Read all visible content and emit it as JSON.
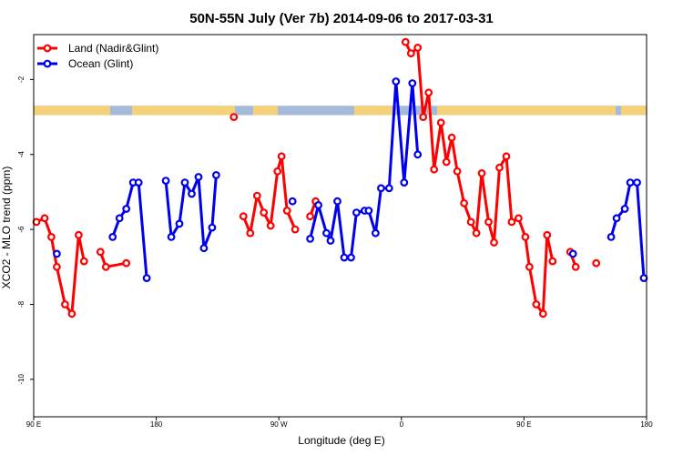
{
  "chart_data": {
    "type": "line",
    "title": "50N-55N July (Ver 7b)   2014-09-06 to 2017-03-31",
    "xlabel": "Longitude (deg E)",
    "ylabel": "XCO2 - MLO trend (ppm)",
    "xlim": [
      90,
      540
    ],
    "ylim": [
      -11,
      -0.8
    ],
    "x_ticks": [
      {
        "value": 90,
        "label": "90 E"
      },
      {
        "value": 180,
        "label": "180"
      },
      {
        "value": 270,
        "label": "90 W"
      },
      {
        "value": 360,
        "label": "0"
      },
      {
        "value": 450,
        "label": "90 E"
      },
      {
        "value": 540,
        "label": "180"
      }
    ],
    "y_ticks": [
      {
        "value": -2,
        "label": "-2"
      },
      {
        "value": -4,
        "label": "-4"
      },
      {
        "value": -6,
        "label": "-6"
      },
      {
        "value": -8,
        "label": "-8"
      },
      {
        "value": -10,
        "label": "-10"
      }
    ],
    "legend": {
      "position": "top-left"
    },
    "band": {
      "y_top": -2.7,
      "y_bottom": -2.95,
      "land_color": "#f5d27a",
      "ocean_color": "#a4bad8"
    },
    "series": [
      {
        "name": "Land (Nadir&Glint)",
        "color": "#ff0000",
        "segments": [
          [
            [
              92,
              -5.8
            ],
            [
              98,
              -5.7
            ],
            [
              103,
              -6.2
            ],
            [
              107,
              -7.0
            ],
            [
              113,
              -8.0
            ],
            [
              118,
              -8.25
            ],
            [
              123,
              -6.15
            ],
            [
              127,
              -6.85
            ]
          ],
          [
            [
              139,
              -6.6
            ],
            [
              143,
              -7.0
            ],
            [
              158,
              -6.9
            ]
          ],
          [
            [
              237,
              -3.0
            ]
          ],
          [
            [
              244,
              -5.65
            ],
            [
              249,
              -6.1
            ],
            [
              254,
              -5.1
            ],
            [
              259,
              -5.55
            ],
            [
              264,
              -5.9
            ],
            [
              269,
              -4.45
            ],
            [
              272,
              -4.05
            ],
            [
              276,
              -5.5
            ],
            [
              282,
              -6.0
            ]
          ],
          [
            [
              293,
              -5.65
            ],
            [
              297,
              -5.25
            ]
          ],
          [
            [
              363,
              -1.0
            ],
            [
              367,
              -1.3
            ],
            [
              372,
              -1.15
            ],
            [
              376,
              -3.0
            ],
            [
              380,
              -2.35
            ],
            [
              384,
              -4.4
            ],
            [
              389,
              -3.15
            ],
            [
              393,
              -4.2
            ],
            [
              397,
              -3.55
            ],
            [
              401,
              -4.45
            ],
            [
              406,
              -5.3
            ],
            [
              411,
              -5.8
            ],
            [
              415,
              -6.1
            ],
            [
              419,
              -4.5
            ],
            [
              424,
              -5.8
            ],
            [
              428,
              -6.35
            ],
            [
              432,
              -4.35
            ],
            [
              437,
              -4.05
            ],
            [
              441,
              -5.8
            ],
            [
              446,
              -5.7
            ],
            [
              451,
              -6.2
            ],
            [
              454,
              -7.0
            ],
            [
              459,
              -8.0
            ],
            [
              464,
              -8.25
            ],
            [
              467,
              -6.15
            ],
            [
              471,
              -6.85
            ]
          ],
          [
            [
              484,
              -6.6
            ],
            [
              488,
              -7.0
            ]
          ],
          [
            [
              503,
              -6.9
            ]
          ]
        ]
      },
      {
        "name": "Ocean (Glint)",
        "color": "#0000ee",
        "segments": [
          [
            [
              107,
              -6.65
            ]
          ],
          [
            [
              148,
              -6.2
            ],
            [
              153,
              -5.7
            ],
            [
              158,
              -5.45
            ],
            [
              163,
              -4.75
            ],
            [
              167,
              -4.75
            ],
            [
              173,
              -7.3
            ]
          ],
          [
            [
              187,
              -4.7
            ],
            [
              191,
              -6.2
            ],
            [
              197,
              -5.85
            ],
            [
              201,
              -4.75
            ],
            [
              206,
              -5.05
            ],
            [
              211,
              -4.6
            ],
            [
              215,
              -6.5
            ],
            [
              221,
              -5.95
            ],
            [
              224,
              -4.55
            ]
          ],
          [
            [
              280,
              -5.25
            ]
          ],
          [
            [
              293,
              -6.25
            ],
            [
              299,
              -5.35
            ],
            [
              305,
              -6.1
            ],
            [
              308,
              -6.3
            ],
            [
              313,
              -5.25
            ],
            [
              318,
              -6.75
            ],
            [
              323,
              -6.75
            ],
            [
              327,
              -5.55
            ],
            [
              333,
              -5.5
            ],
            [
              336,
              -5.5
            ],
            [
              341,
              -6.1
            ],
            [
              345,
              -4.9
            ],
            [
              351,
              -4.9
            ],
            [
              356,
              -2.05
            ],
            [
              362,
              -4.75
            ],
            [
              368,
              -2.1
            ],
            [
              372,
              -4.0
            ]
          ],
          [
            [
              486,
              -6.65
            ]
          ],
          [
            [
              514,
              -6.2
            ],
            [
              518,
              -5.7
            ],
            [
              524,
              -5.45
            ],
            [
              528,
              -4.75
            ],
            [
              533,
              -4.75
            ],
            [
              538,
              -7.3
            ]
          ]
        ]
      }
    ]
  }
}
